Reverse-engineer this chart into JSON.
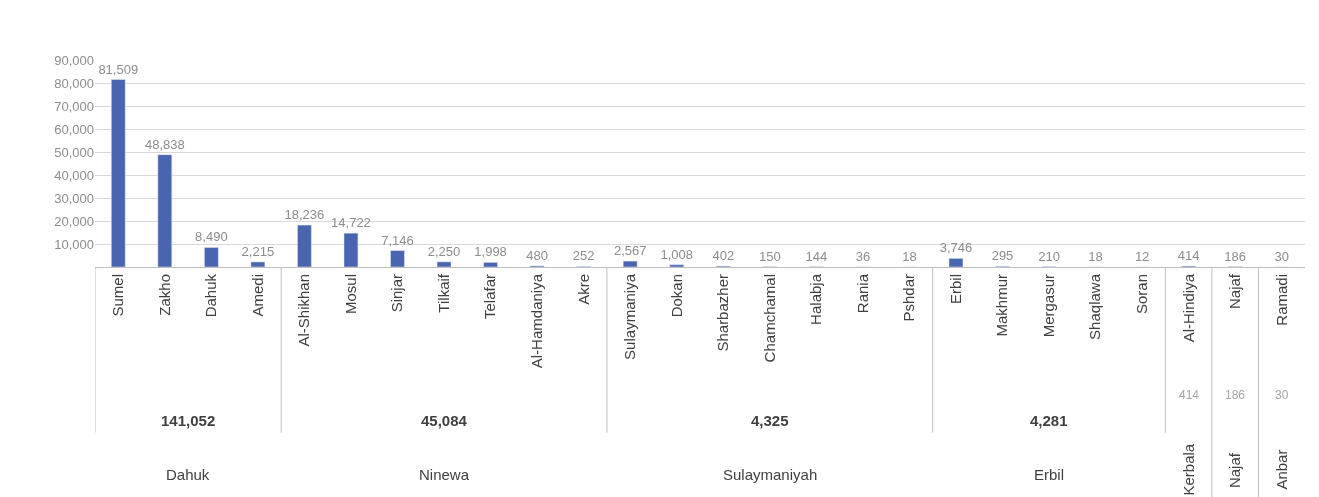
{
  "chart_data": {
    "type": "bar",
    "categories": [
      "Sumel",
      "Zakho",
      "Dahuk",
      "Amedi",
      "Al-Shikhan",
      "Mosul",
      "Sinjar",
      "Tilkaif",
      "Telafar",
      "Al-Hamdaniya",
      "Akre",
      "Sulaymaniya",
      "Dokan",
      "Sharbazher",
      "Chamchamal",
      "Halabja",
      "Rania",
      "Pshdar",
      "Erbil",
      "Makhmur",
      "Mergasur",
      "Shaqlawa",
      "Soran",
      "Al-Hindiya",
      "Najaf",
      "Ramadi"
    ],
    "values": [
      81509,
      48838,
      8490,
      2215,
      18236,
      14722,
      7146,
      2250,
      1998,
      480,
      252,
      2567,
      1008,
      402,
      150,
      144,
      36,
      18,
      3746,
      295,
      210,
      18,
      12,
      414,
      186,
      30
    ],
    "color": "#4a65b0",
    "ylim": [
      0,
      90000
    ],
    "yticks": [
      {
        "value": 10000,
        "label": "10,000"
      },
      {
        "value": 20000,
        "label": "20,000"
      },
      {
        "value": 30000,
        "label": "30,000"
      },
      {
        "value": 40000,
        "label": "40,000"
      },
      {
        "value": 50000,
        "label": "50,000"
      },
      {
        "value": 60000,
        "label": "60,000"
      },
      {
        "value": 70000,
        "label": "70,000"
      },
      {
        "value": 80000,
        "label": "80,000"
      },
      {
        "value": 90000,
        "label": "90,000"
      }
    ],
    "grid": "y",
    "value_labels": [
      "81,509",
      "48,838",
      "8,490",
      "2,215",
      "18,236",
      "14,722",
      "7,146",
      "2,250",
      "1,998",
      "480",
      "252",
      "2,567",
      "1,008",
      "402",
      "150",
      "144",
      "36",
      "18",
      "3,746",
      "295",
      "210",
      "18",
      "12",
      "414",
      "186",
      "30"
    ],
    "annotations": [
      "141,052",
      "Dahuk",
      "45,084",
      "Ninewa",
      "4,325",
      "Sulaymaniyah",
      "4,281",
      "Erbil",
      "414",
      "Kerbala",
      "186",
      "Najaf",
      "30",
      "Anbar"
    ]
  }
}
